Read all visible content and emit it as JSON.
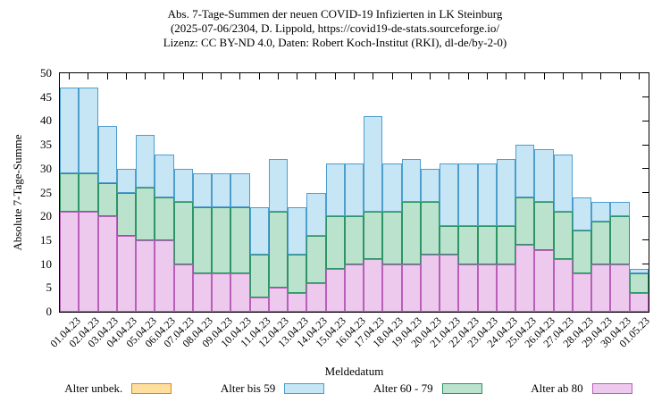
{
  "title": {
    "line1": "Abs. 7-Tage-Summen der neuen COVID-19 Infizierten in LK Steinburg",
    "line2": "(2025-07-06/2304, D. Lippold, https://covid19-de-stats.sourceforge.io/",
    "line3": "Lizenz: CC BY-ND 4.0, Daten: Robert Koch-Institut (RKI), dl-de/by-2-0)"
  },
  "axes": {
    "y_label": "Absolute 7-Tage-Summe",
    "x_label": "Meldedatum",
    "y_ticks": [
      0,
      5,
      10,
      15,
      20,
      25,
      30,
      35,
      40,
      45,
      50
    ],
    "y_max": 50
  },
  "legend": [
    {
      "label": "Alter unbek.",
      "fill": "#ffdfa0",
      "border": "#dd8c00"
    },
    {
      "label": "Alter bis 59",
      "fill": "#c7e6f5",
      "border": "#4d9ecd"
    },
    {
      "label": "Alter 60 - 79",
      "fill": "#bae2cd",
      "border": "#2d9565"
    },
    {
      "label": "Alter ab 80",
      "fill": "#edc9ed",
      "border": "#b95fb9"
    }
  ],
  "chart_data": {
    "type": "bar",
    "stacked": true,
    "title": "Abs. 7-Tage-Summen der neuen COVID-19 Infizierten in LK Steinburg",
    "xlabel": "Meldedatum",
    "ylabel": "Absolute 7-Tage-Summe",
    "ylim": [
      0,
      50
    ],
    "grid": false,
    "legend_position": "below",
    "categories": [
      "01.04.23",
      "02.04.23",
      "03.04.23",
      "04.04.23",
      "05.04.23",
      "06.04.23",
      "07.04.23",
      "08.04.23",
      "09.04.23",
      "10.04.23",
      "11.04.23",
      "12.04.23",
      "13.04.23",
      "14.04.23",
      "15.04.23",
      "16.04.23",
      "17.04.23",
      "18.04.23",
      "19.04.23",
      "20.04.23",
      "21.04.23",
      "22.04.23",
      "23.04.23",
      "24.04.23",
      "25.04.23",
      "26.04.23",
      "27.04.23",
      "28.04.23",
      "29.04.23",
      "30.04.23",
      "01.05.23"
    ],
    "series": [
      {
        "name": "Alter ab 80",
        "fill": "#edc9ed",
        "border": "#b95fb9",
        "values": [
          21,
          21,
          20,
          16,
          15,
          15,
          10,
          8,
          8,
          8,
          3,
          5,
          4,
          6,
          9,
          10,
          11,
          10,
          10,
          12,
          12,
          10,
          10,
          10,
          14,
          13,
          11,
          8,
          10,
          10,
          4
        ]
      },
      {
        "name": "Alter 60 - 79",
        "fill": "#bae2cd",
        "border": "#2d9565",
        "values": [
          8,
          8,
          7,
          9,
          11,
          9,
          13,
          14,
          14,
          14,
          9,
          16,
          8,
          10,
          11,
          10,
          10,
          11,
          13,
          11,
          6,
          8,
          8,
          8,
          10,
          10,
          10,
          9,
          9,
          10,
          4
        ]
      },
      {
        "name": "Alter bis 59",
        "fill": "#c7e6f5",
        "border": "#4d9ecd",
        "values": [
          18,
          18,
          12,
          5,
          11,
          9,
          7,
          7,
          7,
          7,
          10,
          11,
          10,
          9,
          11,
          11,
          20,
          10,
          9,
          7,
          13,
          13,
          13,
          14,
          11,
          11,
          12,
          7,
          4,
          3,
          1
        ]
      },
      {
        "name": "Alter unbek.",
        "fill": "#ffdfa0",
        "border": "#dd8c00",
        "values": [
          0,
          0,
          0,
          0,
          0,
          0,
          0,
          0,
          0,
          0,
          0,
          0,
          0,
          0,
          0,
          0,
          0,
          0,
          0,
          0,
          0,
          0,
          0,
          0,
          0,
          0,
          0,
          0,
          0,
          0,
          0
        ]
      }
    ]
  }
}
